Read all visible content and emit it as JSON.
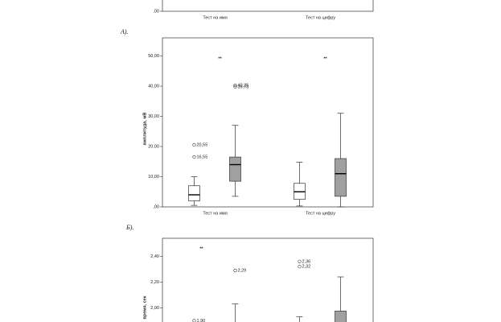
{
  "captions": [
    "А).",
    "Б)."
  ],
  "chart_data": [
    {
      "type": "box",
      "categories": [
        "Тест на имя",
        "Тест на цифру"
      ],
      "yticks": [
        {
          "value": 0,
          "label": ",00"
        }
      ],
      "series": []
    },
    {
      "type": "box",
      "ylabel": "амплитуда, мВ",
      "categories": [
        "Тест на имя",
        "Тест на цифру"
      ],
      "ylim": [
        0,
        56
      ],
      "yticks": [
        {
          "value": 0,
          "label": ",00"
        },
        {
          "value": 10,
          "label": "10,00"
        },
        {
          "value": 20,
          "label": "20,00"
        },
        {
          "value": 30,
          "label": "30,00"
        },
        {
          "value": 40,
          "label": "40,00"
        },
        {
          "value": 50,
          "label": "50,00"
        }
      ],
      "annotations": [
        {
          "text": "**",
          "category": 0
        },
        {
          "text": "**",
          "category": 1
        }
      ],
      "series": [
        {
          "color": "#ffffff",
          "low": [
            0.5,
            0.3
          ],
          "q1": [
            2,
            2.5
          ],
          "median": [
            4,
            5
          ],
          "q3": [
            7,
            7.8
          ],
          "high": [
            10,
            14.8
          ],
          "outliers": [
            [
              20.55,
              16.55
            ],
            []
          ],
          "outlier_labels": [
            [
              "20,55",
              "16,55"
            ],
            []
          ]
        },
        {
          "color": "#a0a0a0",
          "low": [
            3.5,
            0
          ],
          "q1": [
            8.5,
            3.5
          ],
          "median": [
            14,
            11
          ],
          "q3": [
            16.5,
            16
          ],
          "high": [
            27,
            31
          ],
          "outliers": [
            [
              40.25,
              39.78
            ],
            []
          ],
          "outlier_labels": [
            [
              "40,25",
              "39,78"
            ],
            []
          ]
        }
      ]
    },
    {
      "type": "box",
      "ylabel": "время, сек",
      "ylim": [
        1.89,
        2.54
      ],
      "yticks": [
        {
          "value": 2,
          "label": "2,00"
        },
        {
          "value": 2.2,
          "label": "2,20"
        },
        {
          "value": 2.4,
          "label": "2,40"
        }
      ],
      "annotations": [
        {
          "text": "**",
          "category": 0
        }
      ],
      "series": [
        {
          "color": "#ffffff",
          "low": [
            null,
            null
          ],
          "q1": [
            null,
            null
          ],
          "median": [
            null,
            null
          ],
          "q3": [
            null,
            null
          ],
          "high": [
            null,
            1.93
          ],
          "outliers": [
            [
              1.9
            ],
            [
              2.36,
              2.32
            ]
          ],
          "outlier_labels": [
            [
              "1,90"
            ],
            [
              "2,36",
              "2,32"
            ]
          ]
        },
        {
          "color": "#a0a0a0",
          "low": [
            null,
            null
          ],
          "q1": [
            null,
            null
          ],
          "median": [
            null,
            null
          ],
          "q3": [
            null,
            1.975
          ],
          "high": [
            2.03,
            2.24
          ],
          "outliers": [
            [
              2.29
            ],
            []
          ],
          "outlier_labels": [
            [
              "2,29"
            ],
            []
          ]
        }
      ]
    }
  ]
}
